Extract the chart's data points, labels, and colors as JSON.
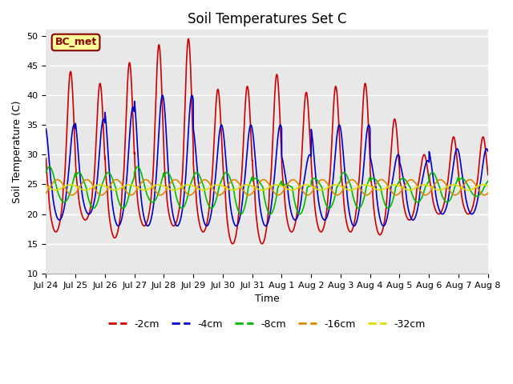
{
  "title": "Soil Temperatures Set C",
  "xlabel": "Time",
  "ylabel": "Soil Temperature (C)",
  "ylim": [
    10,
    51
  ],
  "yticks": [
    10,
    15,
    20,
    25,
    30,
    35,
    40,
    45,
    50
  ],
  "label_text": "BC_met",
  "xtick_labels": [
    "Jul 24",
    "Jul 25",
    "Jul 26",
    "Jul 27",
    "Jul 28",
    "Jul 29",
    "Jul 30",
    "Jul 31",
    "Aug 1",
    "Aug 2",
    "Aug 3",
    "Aug 4",
    "Aug 5",
    "Aug 6",
    "Aug 7",
    "Aug 8"
  ],
  "colors": {
    "-2cm": "#cc0000",
    "-4cm": "#0000cc",
    "-8cm": "#00bb00",
    "-16cm": "#dd8800",
    "-32cm": "#dddd00"
  },
  "background_color": "#e8e8e8",
  "n_days": 15,
  "points_per_day": 240,
  "mean_temp": 24.5,
  "title_fontsize": 12,
  "axis_label_fontsize": 9,
  "tick_fontsize": 8,
  "legend_fontsize": 9,
  "line_width": 1.2
}
